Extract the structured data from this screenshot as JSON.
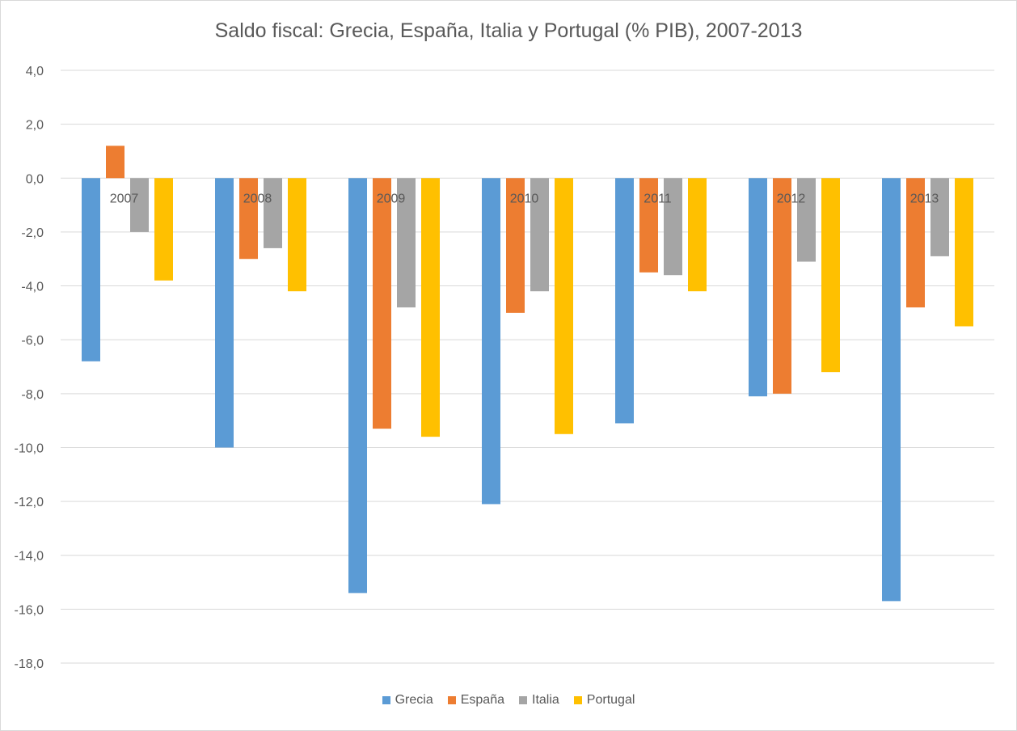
{
  "chart_data": {
    "type": "bar",
    "title": "Saldo fiscal: Grecia, España, Italia y Portugal (% PIB), 2007-2013",
    "xlabel": "",
    "ylabel": "",
    "ylim": [
      -18,
      4
    ],
    "yticks": [
      "4,0",
      "2,0",
      "0,0",
      "-2,0",
      "-4,0",
      "-6,0",
      "-8,0",
      "-10,0",
      "-12,0",
      "-14,0",
      "-16,0",
      "-18,0"
    ],
    "ytick_values": [
      4,
      2,
      0,
      -2,
      -4,
      -6,
      -8,
      -10,
      -12,
      -14,
      -16,
      -18
    ],
    "grid": true,
    "legend_position": "bottom",
    "categories": [
      "2007",
      "2008",
      "2009",
      "2010",
      "2011",
      "2012",
      "2013"
    ],
    "series": [
      {
        "name": "Grecia",
        "color": "#5b9bd5",
        "values": [
          -6.8,
          -10.0,
          -15.4,
          -12.1,
          -9.1,
          -8.1,
          -15.7
        ]
      },
      {
        "name": "España",
        "color": "#ed7d31",
        "values": [
          1.2,
          -3.0,
          -9.3,
          -5.0,
          -3.5,
          -8.0,
          -4.8
        ]
      },
      {
        "name": "Italia",
        "color": "#a5a5a5",
        "values": [
          -2.0,
          -2.6,
          -4.8,
          -4.2,
          -3.6,
          -3.1,
          -2.9
        ]
      },
      {
        "name": "Portugal",
        "color": "#ffc000",
        "values": [
          -3.8,
          -4.2,
          -9.6,
          -9.5,
          -4.2,
          -7.2,
          -5.5
        ]
      }
    ]
  }
}
